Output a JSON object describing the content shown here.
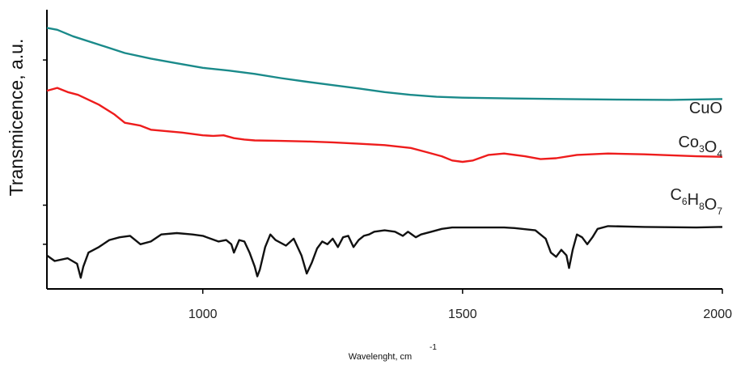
{
  "chart_data": {
    "type": "line",
    "title": "",
    "xlabel": "Wavelenght, cm",
    "xlabel_superscript": "-1",
    "ylabel": "Transmicence, a.u.",
    "xlim": [
      700,
      2000
    ],
    "ylim": [
      0,
      10
    ],
    "x_ticks": [
      1000,
      1500,
      2000
    ],
    "grid": false,
    "series": [
      {
        "name": "CuO",
        "label_parts": [
          {
            "t": "CuO",
            "sub": ""
          }
        ],
        "color": "#1a8a8a",
        "points": [
          [
            700,
            9.35
          ],
          [
            720,
            9.28
          ],
          [
            750,
            9.05
          ],
          [
            800,
            8.75
          ],
          [
            850,
            8.45
          ],
          [
            900,
            8.25
          ],
          [
            950,
            8.08
          ],
          [
            1000,
            7.92
          ],
          [
            1050,
            7.82
          ],
          [
            1100,
            7.7
          ],
          [
            1150,
            7.55
          ],
          [
            1200,
            7.42
          ],
          [
            1250,
            7.3
          ],
          [
            1300,
            7.18
          ],
          [
            1350,
            7.05
          ],
          [
            1400,
            6.95
          ],
          [
            1450,
            6.88
          ],
          [
            1500,
            6.85
          ],
          [
            1600,
            6.82
          ],
          [
            1700,
            6.8
          ],
          [
            1800,
            6.78
          ],
          [
            1900,
            6.77
          ],
          [
            2000,
            6.8
          ]
        ]
      },
      {
        "name": "Co3O4",
        "label_parts": [
          {
            "t": "Co",
            "sub": "3"
          },
          {
            "t": "O",
            "sub": "4"
          }
        ],
        "color": "#ee1c1c",
        "points": [
          [
            700,
            7.1
          ],
          [
            720,
            7.2
          ],
          [
            740,
            7.05
          ],
          [
            760,
            6.95
          ],
          [
            800,
            6.6
          ],
          [
            830,
            6.25
          ],
          [
            850,
            5.95
          ],
          [
            880,
            5.85
          ],
          [
            900,
            5.7
          ],
          [
            930,
            5.65
          ],
          [
            960,
            5.6
          ],
          [
            1000,
            5.5
          ],
          [
            1020,
            5.48
          ],
          [
            1040,
            5.5
          ],
          [
            1060,
            5.4
          ],
          [
            1080,
            5.35
          ],
          [
            1100,
            5.32
          ],
          [
            1150,
            5.3
          ],
          [
            1200,
            5.28
          ],
          [
            1250,
            5.25
          ],
          [
            1300,
            5.2
          ],
          [
            1350,
            5.15
          ],
          [
            1400,
            5.05
          ],
          [
            1430,
            4.9
          ],
          [
            1460,
            4.75
          ],
          [
            1480,
            4.6
          ],
          [
            1500,
            4.55
          ],
          [
            1520,
            4.6
          ],
          [
            1550,
            4.8
          ],
          [
            1580,
            4.85
          ],
          [
            1620,
            4.75
          ],
          [
            1650,
            4.65
          ],
          [
            1680,
            4.68
          ],
          [
            1720,
            4.8
          ],
          [
            1780,
            4.85
          ],
          [
            1850,
            4.82
          ],
          [
            1950,
            4.75
          ],
          [
            2000,
            4.73
          ]
        ]
      },
      {
        "name": "C6H8O7",
        "label_parts": [
          {
            "t": "C",
            "sub": "6"
          },
          {
            "t": "H",
            "sub": "8"
          },
          {
            "t": "O",
            "sub": "7"
          }
        ],
        "color": "#111111",
        "points": [
          [
            700,
            1.2
          ],
          [
            715,
            1.0
          ],
          [
            740,
            1.1
          ],
          [
            758,
            0.9
          ],
          [
            765,
            0.4
          ],
          [
            770,
            0.8
          ],
          [
            780,
            1.3
          ],
          [
            800,
            1.5
          ],
          [
            820,
            1.75
          ],
          [
            840,
            1.85
          ],
          [
            860,
            1.9
          ],
          [
            880,
            1.6
          ],
          [
            900,
            1.7
          ],
          [
            920,
            1.95
          ],
          [
            950,
            2.0
          ],
          [
            980,
            1.95
          ],
          [
            1000,
            1.9
          ],
          [
            1030,
            1.7
          ],
          [
            1045,
            1.75
          ],
          [
            1055,
            1.6
          ],
          [
            1060,
            1.3
          ],
          [
            1070,
            1.75
          ],
          [
            1080,
            1.7
          ],
          [
            1090,
            1.3
          ],
          [
            1100,
            0.8
          ],
          [
            1105,
            0.45
          ],
          [
            1110,
            0.7
          ],
          [
            1120,
            1.5
          ],
          [
            1130,
            1.95
          ],
          [
            1140,
            1.75
          ],
          [
            1160,
            1.55
          ],
          [
            1175,
            1.8
          ],
          [
            1190,
            1.2
          ],
          [
            1200,
            0.55
          ],
          [
            1210,
            0.95
          ],
          [
            1220,
            1.45
          ],
          [
            1230,
            1.7
          ],
          [
            1240,
            1.6
          ],
          [
            1250,
            1.8
          ],
          [
            1260,
            1.5
          ],
          [
            1270,
            1.85
          ],
          [
            1280,
            1.9
          ],
          [
            1290,
            1.5
          ],
          [
            1300,
            1.75
          ],
          [
            1310,
            1.9
          ],
          [
            1320,
            1.95
          ],
          [
            1330,
            2.05
          ],
          [
            1350,
            2.1
          ],
          [
            1370,
            2.05
          ],
          [
            1385,
            1.9
          ],
          [
            1395,
            2.05
          ],
          [
            1410,
            1.85
          ],
          [
            1420,
            1.95
          ],
          [
            1440,
            2.05
          ],
          [
            1460,
            2.15
          ],
          [
            1480,
            2.2
          ],
          [
            1520,
            2.2
          ],
          [
            1580,
            2.2
          ],
          [
            1600,
            2.18
          ],
          [
            1640,
            2.1
          ],
          [
            1660,
            1.8
          ],
          [
            1670,
            1.3
          ],
          [
            1680,
            1.15
          ],
          [
            1690,
            1.4
          ],
          [
            1700,
            1.2
          ],
          [
            1705,
            0.75
          ],
          [
            1712,
            1.4
          ],
          [
            1720,
            1.95
          ],
          [
            1730,
            1.85
          ],
          [
            1740,
            1.6
          ],
          [
            1750,
            1.85
          ],
          [
            1760,
            2.15
          ],
          [
            1780,
            2.25
          ],
          [
            1850,
            2.22
          ],
          [
            1950,
            2.2
          ],
          [
            2000,
            2.22
          ]
        ]
      }
    ]
  }
}
